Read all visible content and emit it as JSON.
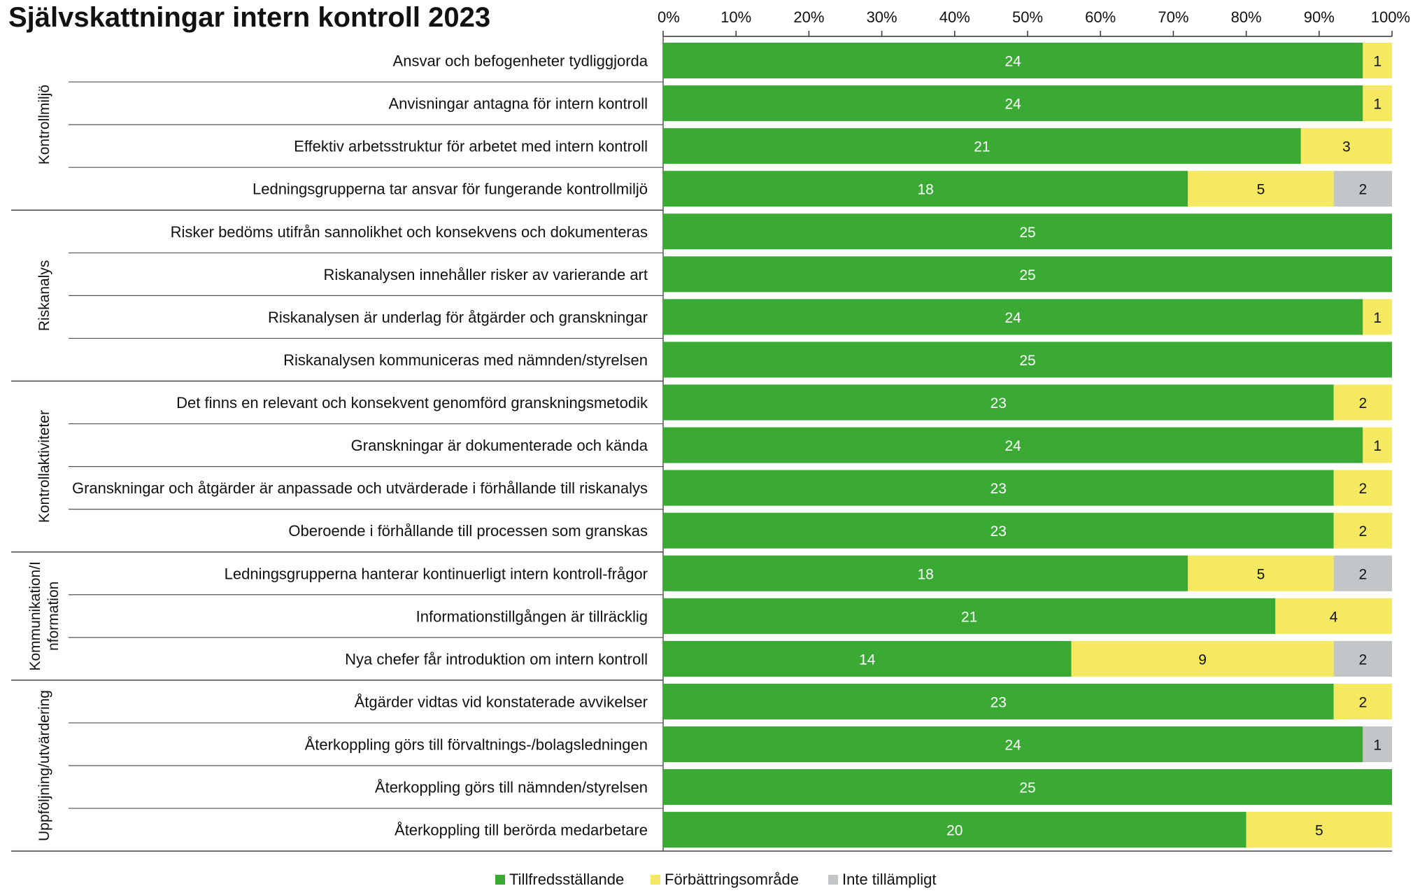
{
  "chart_data": {
    "type": "bar",
    "orientation": "horizontal",
    "stacked": true,
    "normalized": true,
    "title": "Självskattningar intern kontroll 2023",
    "xlim": [
      0,
      100
    ],
    "x_unit": "%",
    "x_ticks": [
      "0%",
      "10%",
      "20%",
      "30%",
      "40%",
      "50%",
      "60%",
      "70%",
      "80%",
      "90%",
      "100%"
    ],
    "legend_position": "bottom",
    "grid": false,
    "series": [
      {
        "name": "Tillfredsställande",
        "color": "#3aaa35"
      },
      {
        "name": "Förbättringsområde",
        "color": "#f4e961"
      },
      {
        "name": "Inte tillämpligt",
        "color": "#c3c6c8"
      }
    ],
    "groups": [
      {
        "name": "Kontrollmiljö",
        "rows": [
          {
            "label": "Ansvar och befogenheter tydliggjorda",
            "values": [
              24,
              1,
              0
            ]
          },
          {
            "label": "Anvisningar antagna för intern kontroll",
            "values": [
              24,
              1,
              0
            ]
          },
          {
            "label": "Effektiv arbetsstruktur för arbetet med intern kontroll",
            "values": [
              21,
              3,
              0
            ]
          },
          {
            "label": "Ledningsgrupperna tar ansvar för fungerande kontrollmiljö",
            "values": [
              18,
              5,
              2
            ]
          }
        ]
      },
      {
        "name": "Riskanalys",
        "rows": [
          {
            "label": "Risker bedöms utifrån sannolikhet och konsekvens och dokumenteras",
            "values": [
              25,
              0,
              0
            ]
          },
          {
            "label": "Riskanalysen innehåller risker av varierande art",
            "values": [
              25,
              0,
              0
            ]
          },
          {
            "label": "Riskanalysen är underlag för åtgärder och granskningar",
            "values": [
              24,
              1,
              0
            ]
          },
          {
            "label": "Riskanalysen kommuniceras med nämnden/styrelsen",
            "values": [
              25,
              0,
              0
            ]
          }
        ]
      },
      {
        "name": "Kontrollaktiviteter",
        "rows": [
          {
            "label": "Det finns en relevant och konsekvent genomförd granskningsmetodik",
            "values": [
              23,
              2,
              0
            ]
          },
          {
            "label": "Granskningar är dokumenterade och kända",
            "values": [
              24,
              1,
              0
            ]
          },
          {
            "label": "Granskningar och åtgärder är anpassade och utvärderade i förhållande till riskanalys",
            "values": [
              23,
              2,
              0
            ]
          },
          {
            "label": "Oberoende i förhållande till processen som granskas",
            "values": [
              23,
              2,
              0
            ]
          }
        ]
      },
      {
        "name": "Kommunikation/Information",
        "name_lines": [
          "Kommunikation/I",
          "nformation"
        ],
        "rows": [
          {
            "label": "Ledningsgrupperna hanterar kontinuerligt intern kontroll-frågor",
            "values": [
              18,
              5,
              2
            ]
          },
          {
            "label": "Informationstillgången är tillräcklig",
            "values": [
              21,
              4,
              0
            ]
          },
          {
            "label": "Nya chefer får introduktion om intern kontroll",
            "values": [
              14,
              9,
              2
            ]
          }
        ]
      },
      {
        "name": "Uppföljning/utvärdering",
        "rows": [
          {
            "label": "Åtgärder vidtas vid konstaterade avvikelser",
            "values": [
              23,
              2,
              0
            ]
          },
          {
            "label": "Återkoppling görs till förvaltnings-/bolagsledningen",
            "values": [
              24,
              0,
              1
            ]
          },
          {
            "label": "Återkoppling görs till nämnden/styrelsen",
            "values": [
              25,
              0,
              0
            ]
          },
          {
            "label": "Återkoppling till berörda medarbetare",
            "values": [
              20,
              5,
              0
            ]
          }
        ]
      }
    ]
  }
}
